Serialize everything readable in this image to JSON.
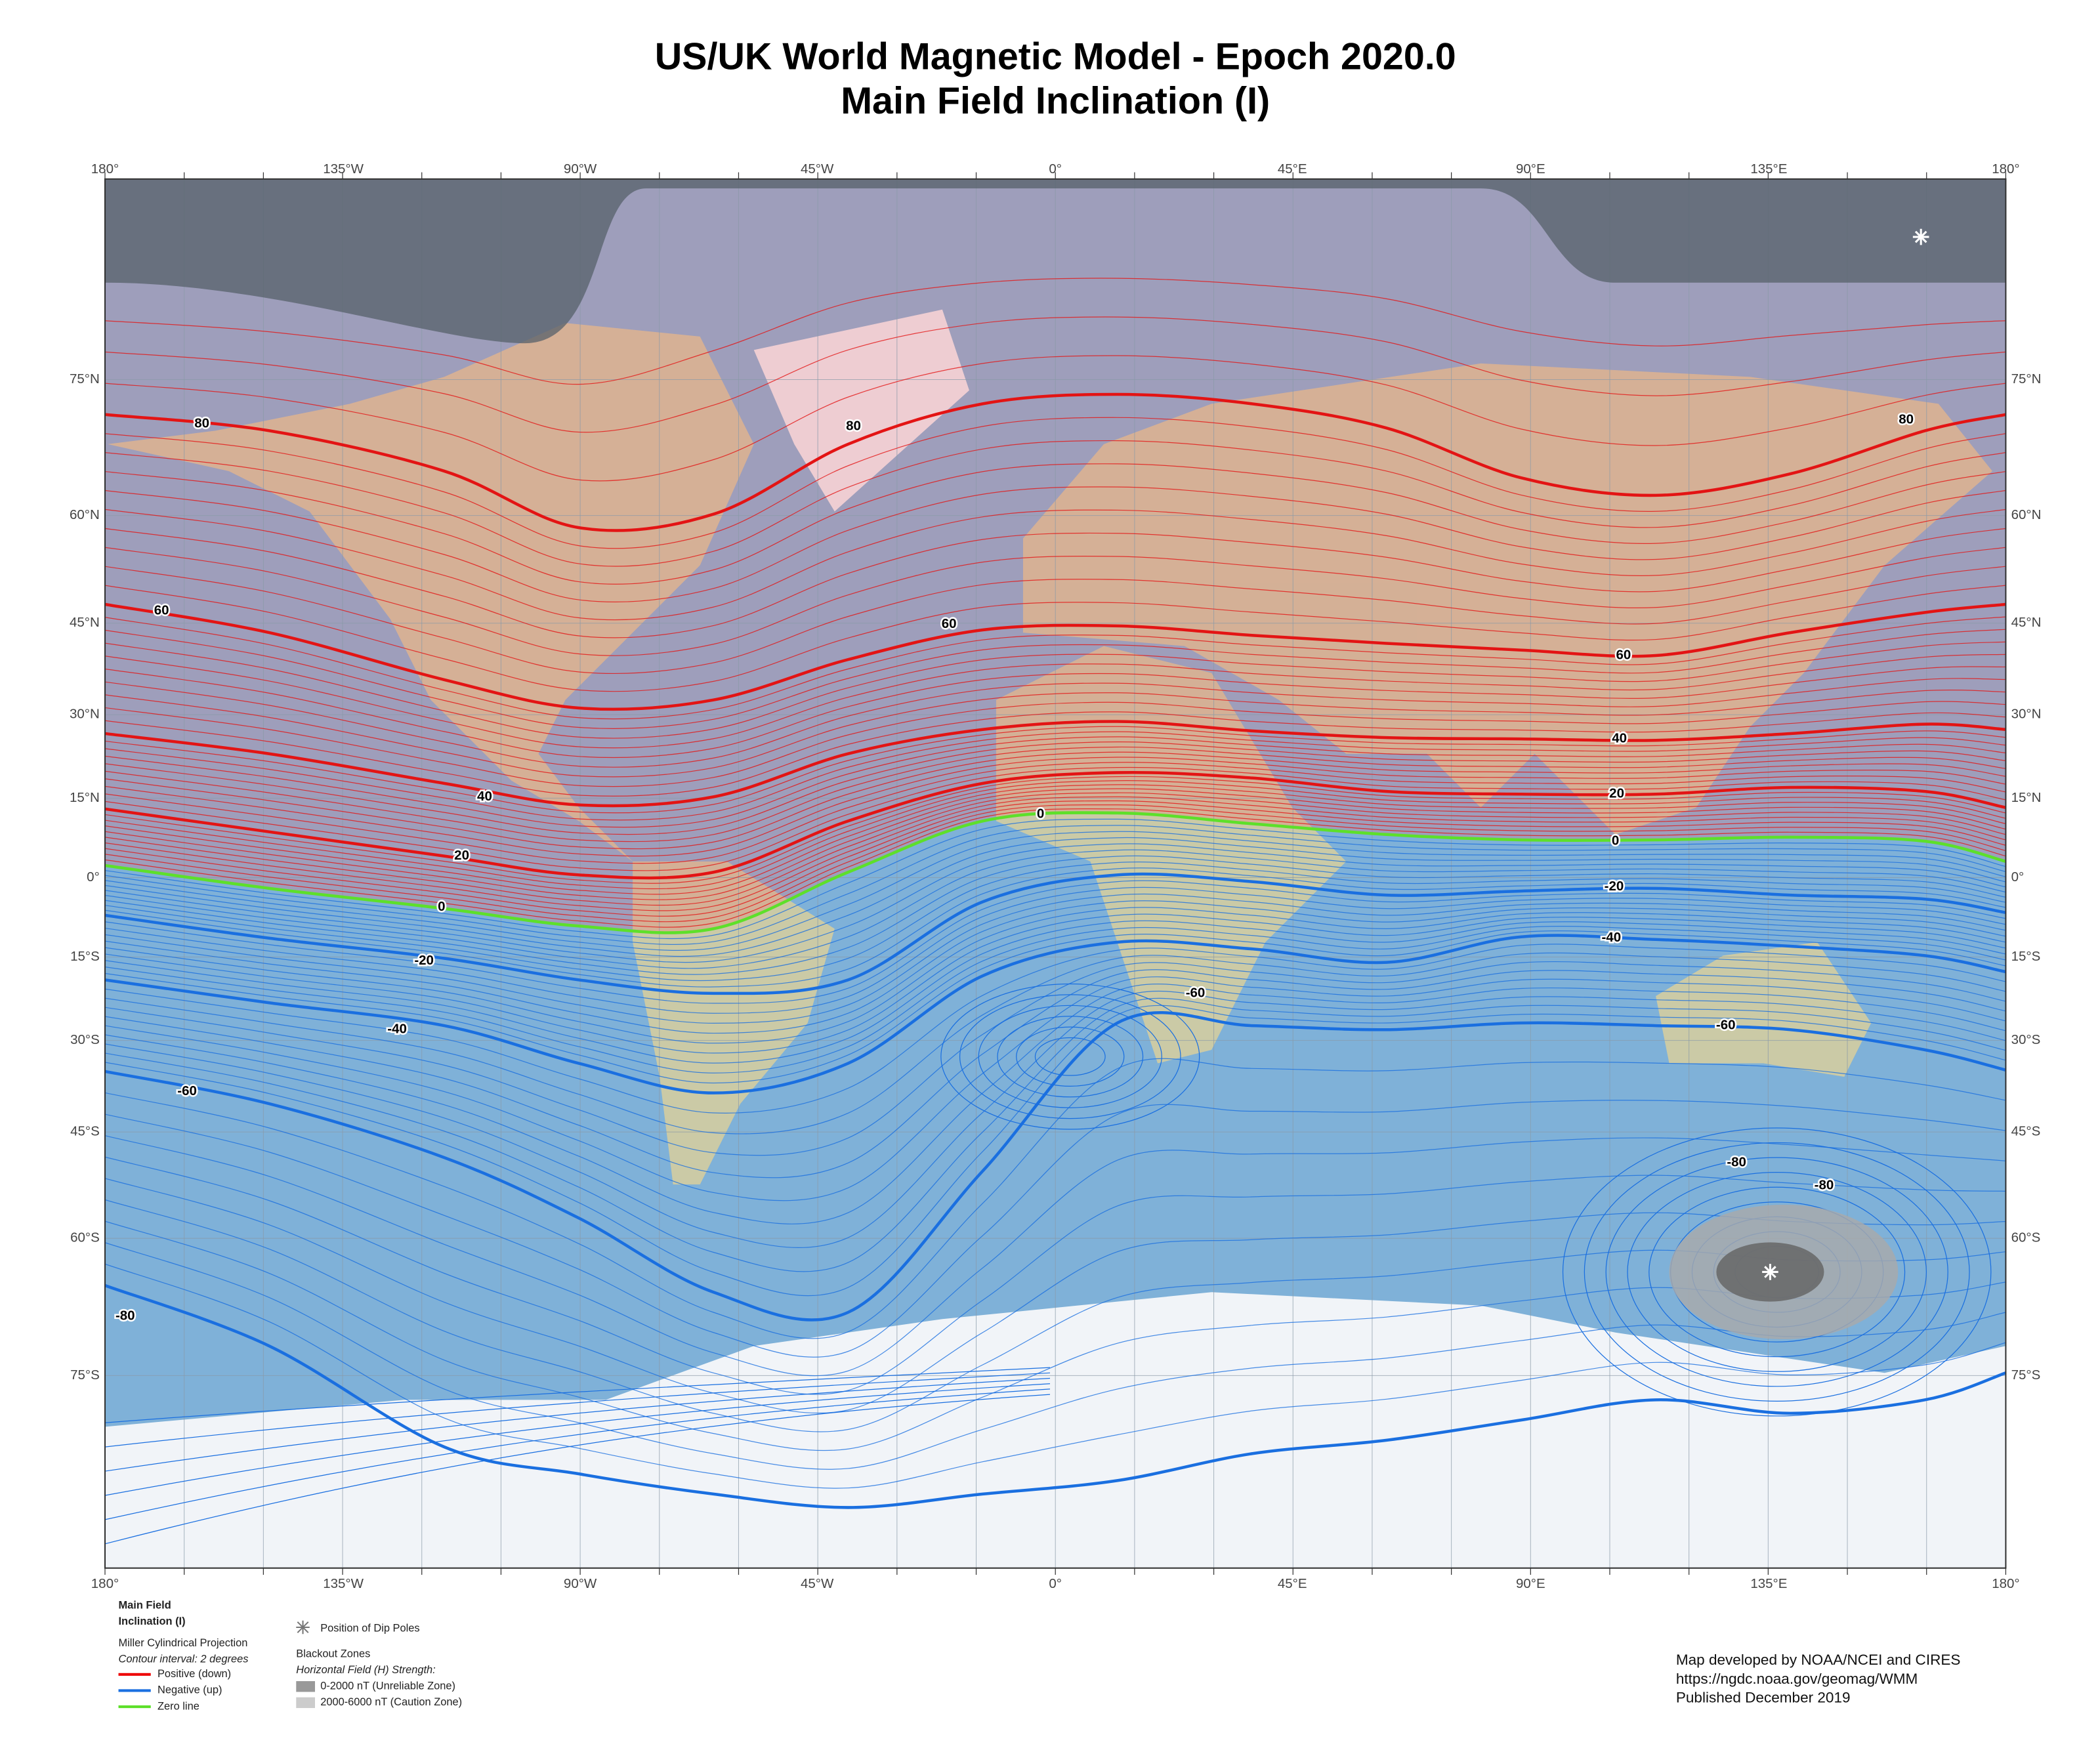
{
  "header": {
    "title": "US/UK World Magnetic Model - Epoch 2020.0",
    "subtitle": "Main Field Inclination (I)"
  },
  "map": {
    "longitude_labels": [
      "180°",
      "135°W",
      "90°W",
      "45°W",
      "0°",
      "45°E",
      "90°E",
      "135°E",
      "180°"
    ],
    "latitude_labels": [
      "75°N",
      "60°N",
      "45°N",
      "30°N",
      "15°N",
      "0°",
      "15°S",
      "30°S",
      "45°S",
      "60°S",
      "75°S"
    ],
    "contour_labels": [
      "80",
      "80",
      "80",
      "60",
      "60",
      "60",
      "40",
      "40",
      "20",
      "20",
      "0",
      "0",
      "0",
      "-20",
      "-20",
      "-40",
      "-40",
      "-60",
      "-60",
      "-60",
      "-80",
      "-80",
      "-80"
    ]
  },
  "legend": {
    "title_line1": "Main Field",
    "title_line2": "Inclination (I)",
    "projection": "Miller Cylindrical Projection",
    "interval": "Contour interval: 2 degrees",
    "positive": "Positive (down)",
    "negative": "Negative (up)",
    "zero": "Zero line",
    "dip_poles": "Position of Dip Poles",
    "blackout_title": "Blackout Zones",
    "blackout_subtitle": "Horizontal Field (H) Strength:",
    "unreliable": "0-2000 nT (Unreliable Zone)",
    "caution": "2000-6000 nT (Caution Zone)"
  },
  "credits": {
    "line1": "Map developed by NOAA/NCEI and CIRES",
    "line2": "https://ngdc.noaa.gov/geomag/WMM",
    "line3": "Published December 2019"
  }
}
